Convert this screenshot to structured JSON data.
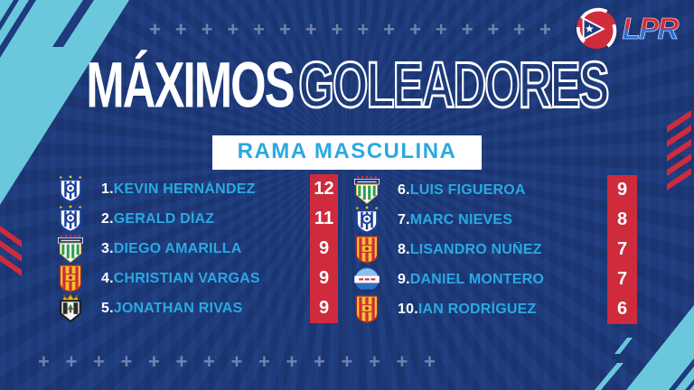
{
  "brand": {
    "logo_text": "LPR",
    "logo_icon": "soccer-ball-puerto-rico-flag"
  },
  "header": {
    "title_solid": "MÁXIMOS",
    "title_outline": "GOLEADORES",
    "subtitle": "RAMA MASCULINA"
  },
  "chart_data": {
    "type": "table",
    "title": "MÁXIMOS GOLEADORES",
    "subtitle": "RAMA MASCULINA",
    "columns": [
      "rank",
      "player",
      "goals"
    ],
    "rows": [
      [
        1,
        "KEVIN HERNÁNDEZ",
        12
      ],
      [
        2,
        "GERALD DÍAZ",
        11
      ],
      [
        3,
        "DIEGO AMARILLA",
        9
      ],
      [
        4,
        "CHRISTIAN VARGAS",
        9
      ],
      [
        5,
        "JONATHAN RIVAS",
        9
      ],
      [
        6,
        "LUIS FIGUEROA",
        9
      ],
      [
        7,
        "MARC NIEVES",
        8
      ],
      [
        8,
        "LISANDRO NUÑEZ",
        7
      ],
      [
        9,
        "DANIEL MONTERO",
        7
      ],
      [
        10,
        "IAN RODRÍGUEZ",
        6
      ]
    ]
  },
  "scoreboard": {
    "columns": [
      {
        "players": [
          {
            "rank": "1.",
            "name": "KEVIN HERNÁNDEZ",
            "goals": "12",
            "crest": "blue-shield-crest"
          },
          {
            "rank": "2.",
            "name": "GERALD DÍAZ",
            "goals": "11",
            "crest": "blue-shield-crest"
          },
          {
            "rank": "3.",
            "name": "DIEGO AMARILLA",
            "goals": "9",
            "crest": "metropolitan-crest"
          },
          {
            "rank": "4.",
            "name": "CHRISTIAN VARGAS",
            "goals": "9",
            "crest": "red-yellow-crest"
          },
          {
            "rank": "5.",
            "name": "JONATHAN RIVAS",
            "goals": "9",
            "crest": "crown-shield-crest"
          }
        ]
      },
      {
        "players": [
          {
            "rank": "6.",
            "name": "LUIS FIGUEROA",
            "goals": "9",
            "crest": "metropolitan-crest"
          },
          {
            "rank": "7.",
            "name": "MARC NIEVES",
            "goals": "8",
            "crest": "blue-shield-crest"
          },
          {
            "rank": "8.",
            "name": "LISANDRO NUÑEZ",
            "goals": "7",
            "crest": "red-yellow-crest"
          },
          {
            "rank": "9.",
            "name": "DANIEL MONTERO",
            "goals": "7",
            "crest": "blue-ball-crest"
          },
          {
            "rank": "10.",
            "name": "IAN RODRÍGUEZ",
            "goals": "6",
            "crest": "red-yellow-crest"
          }
        ]
      }
    ]
  },
  "decorations": {
    "plus_symbol": "+",
    "top_plus_count": 16,
    "bottom_plus_count": 15
  },
  "colors": {
    "background_navy": "#1d3b7d",
    "cyan_accent": "#6bc8dc",
    "name_blue": "#2aa9e0",
    "score_red": "#cf2b3c",
    "white": "#ffffff"
  }
}
